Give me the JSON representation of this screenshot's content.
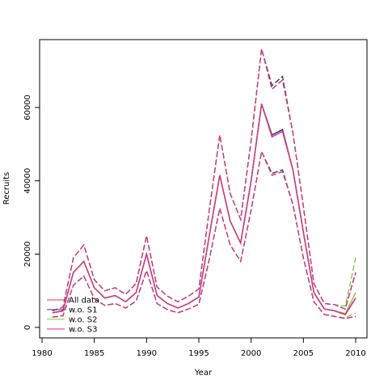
{
  "chart_data": {
    "type": "line",
    "title": "",
    "xlabel": "Year",
    "ylabel": "Recruits",
    "xlim": [
      1980,
      2010
    ],
    "ylim": [
      0,
      75000
    ],
    "xticks": [
      1980,
      1985,
      1990,
      1995,
      2000,
      2005,
      2010
    ],
    "yticks": [
      0,
      20000,
      40000,
      60000
    ],
    "grid": false,
    "legend_position": "bottom-left",
    "x": [
      1981,
      1982,
      1983,
      1984,
      1985,
      1986,
      1987,
      1988,
      1989,
      1990,
      1991,
      1992,
      1993,
      1994,
      1995,
      1996,
      1997,
      1998,
      1999,
      2000,
      2001,
      2002,
      2003,
      2004,
      2005,
      2006,
      2007,
      2008,
      2009,
      2010
    ],
    "series": [
      {
        "name": "All data",
        "color": "#e8383c",
        "estimate": [
          4000,
          4500,
          15000,
          18000,
          10800,
          8000,
          8700,
          7000,
          9500,
          20000,
          8700,
          6500,
          5300,
          6500,
          8300,
          25000,
          41500,
          29000,
          23000,
          40000,
          61000,
          52000,
          53500,
          43000,
          26000,
          9500,
          5000,
          4500,
          3500,
          8000
        ],
        "lower": [
          2800,
          3200,
          11500,
          14000,
          7800,
          6000,
          6500,
          5300,
          7200,
          15500,
          6500,
          4800,
          4000,
          5000,
          6300,
          18500,
          32500,
          22500,
          18000,
          32000,
          48000,
          41500,
          42500,
          33500,
          19000,
          7000,
          3500,
          3000,
          2400,
          3000
        ],
        "upper": [
          4500,
          5500,
          19000,
          22500,
          13000,
          10000,
          10800,
          9000,
          12000,
          25000,
          11000,
          8500,
          7000,
          8500,
          10500,
          32000,
          52500,
          36500,
          29500,
          51000,
          76000,
          65000,
          67500,
          53000,
          33000,
          12000,
          6500,
          6200,
          5000,
          15000
        ]
      },
      {
        "name": "w.o. S1",
        "color": "#2b2b7a",
        "estimate": [
          4000,
          4500,
          15000,
          18000,
          10800,
          8000,
          8700,
          7000,
          9500,
          20000,
          8700,
          6500,
          5300,
          6500,
          8300,
          25000,
          41500,
          29000,
          23000,
          40000,
          61000,
          52500,
          54000,
          43000,
          26000,
          9500,
          5000,
          4500,
          3500,
          8000
        ],
        "lower": [
          2800,
          3200,
          11500,
          14000,
          7800,
          6000,
          6500,
          5300,
          7200,
          15500,
          6500,
          4800,
          4000,
          5000,
          6300,
          18500,
          32500,
          22500,
          18000,
          32000,
          48000,
          42000,
          43000,
          33500,
          19000,
          7000,
          3500,
          3000,
          2400,
          3000
        ],
        "upper": [
          4500,
          5500,
          19000,
          22500,
          13000,
          10000,
          10800,
          9000,
          12000,
          25000,
          11000,
          8500,
          7000,
          8500,
          10500,
          32000,
          52500,
          36500,
          29500,
          51000,
          76000,
          66000,
          68500,
          53000,
          33000,
          12000,
          6500,
          6200,
          5000,
          15000
        ]
      },
      {
        "name": "w.o. S2",
        "color": "#86c441",
        "estimate": [
          4000,
          4500,
          15000,
          18000,
          10800,
          8000,
          8700,
          7000,
          9500,
          20000,
          8700,
          6500,
          5300,
          6500,
          8300,
          25000,
          41500,
          29000,
          23000,
          40000,
          61000,
          52000,
          53500,
          43000,
          26000,
          9500,
          5000,
          4500,
          3800,
          9500
        ],
        "lower": [
          2800,
          3200,
          11500,
          14000,
          7800,
          6000,
          6500,
          5300,
          7200,
          15500,
          6500,
          4800,
          4000,
          5000,
          6300,
          18500,
          32500,
          22500,
          18000,
          32000,
          48000,
          41500,
          42500,
          33500,
          19000,
          7000,
          3500,
          3000,
          2600,
          4000
        ],
        "upper": [
          4500,
          5500,
          19000,
          22500,
          13000,
          10000,
          10800,
          9000,
          12000,
          25000,
          11000,
          8500,
          7000,
          8500,
          10500,
          32000,
          52500,
          36500,
          29500,
          51000,
          76000,
          65000,
          67500,
          53000,
          33000,
          12000,
          6500,
          6200,
          5800,
          19000
        ]
      },
      {
        "name": "w.o. S3",
        "color": "#d6338a",
        "estimate": [
          4000,
          4500,
          15000,
          18000,
          10800,
          8000,
          8700,
          7000,
          9500,
          20000,
          8700,
          6500,
          5300,
          6500,
          8300,
          25000,
          41500,
          29000,
          23000,
          40000,
          61000,
          52000,
          53500,
          43000,
          26000,
          9500,
          5000,
          4500,
          3500,
          8000
        ],
        "lower": [
          2800,
          3200,
          11500,
          14000,
          7800,
          6000,
          6500,
          5300,
          7200,
          15500,
          6500,
          4800,
          4000,
          5000,
          6300,
          18500,
          32500,
          22500,
          18000,
          32000,
          48000,
          41500,
          42500,
          33500,
          19000,
          7000,
          3500,
          3000,
          2400,
          3000
        ],
        "upper": [
          4500,
          5500,
          19000,
          22500,
          13000,
          10000,
          10800,
          9000,
          12000,
          25000,
          11000,
          8500,
          7000,
          8500,
          10500,
          32000,
          52500,
          36500,
          29500,
          51000,
          76000,
          65000,
          67500,
          53000,
          33000,
          12000,
          6500,
          6200,
          5000,
          15000
        ]
      }
    ]
  }
}
